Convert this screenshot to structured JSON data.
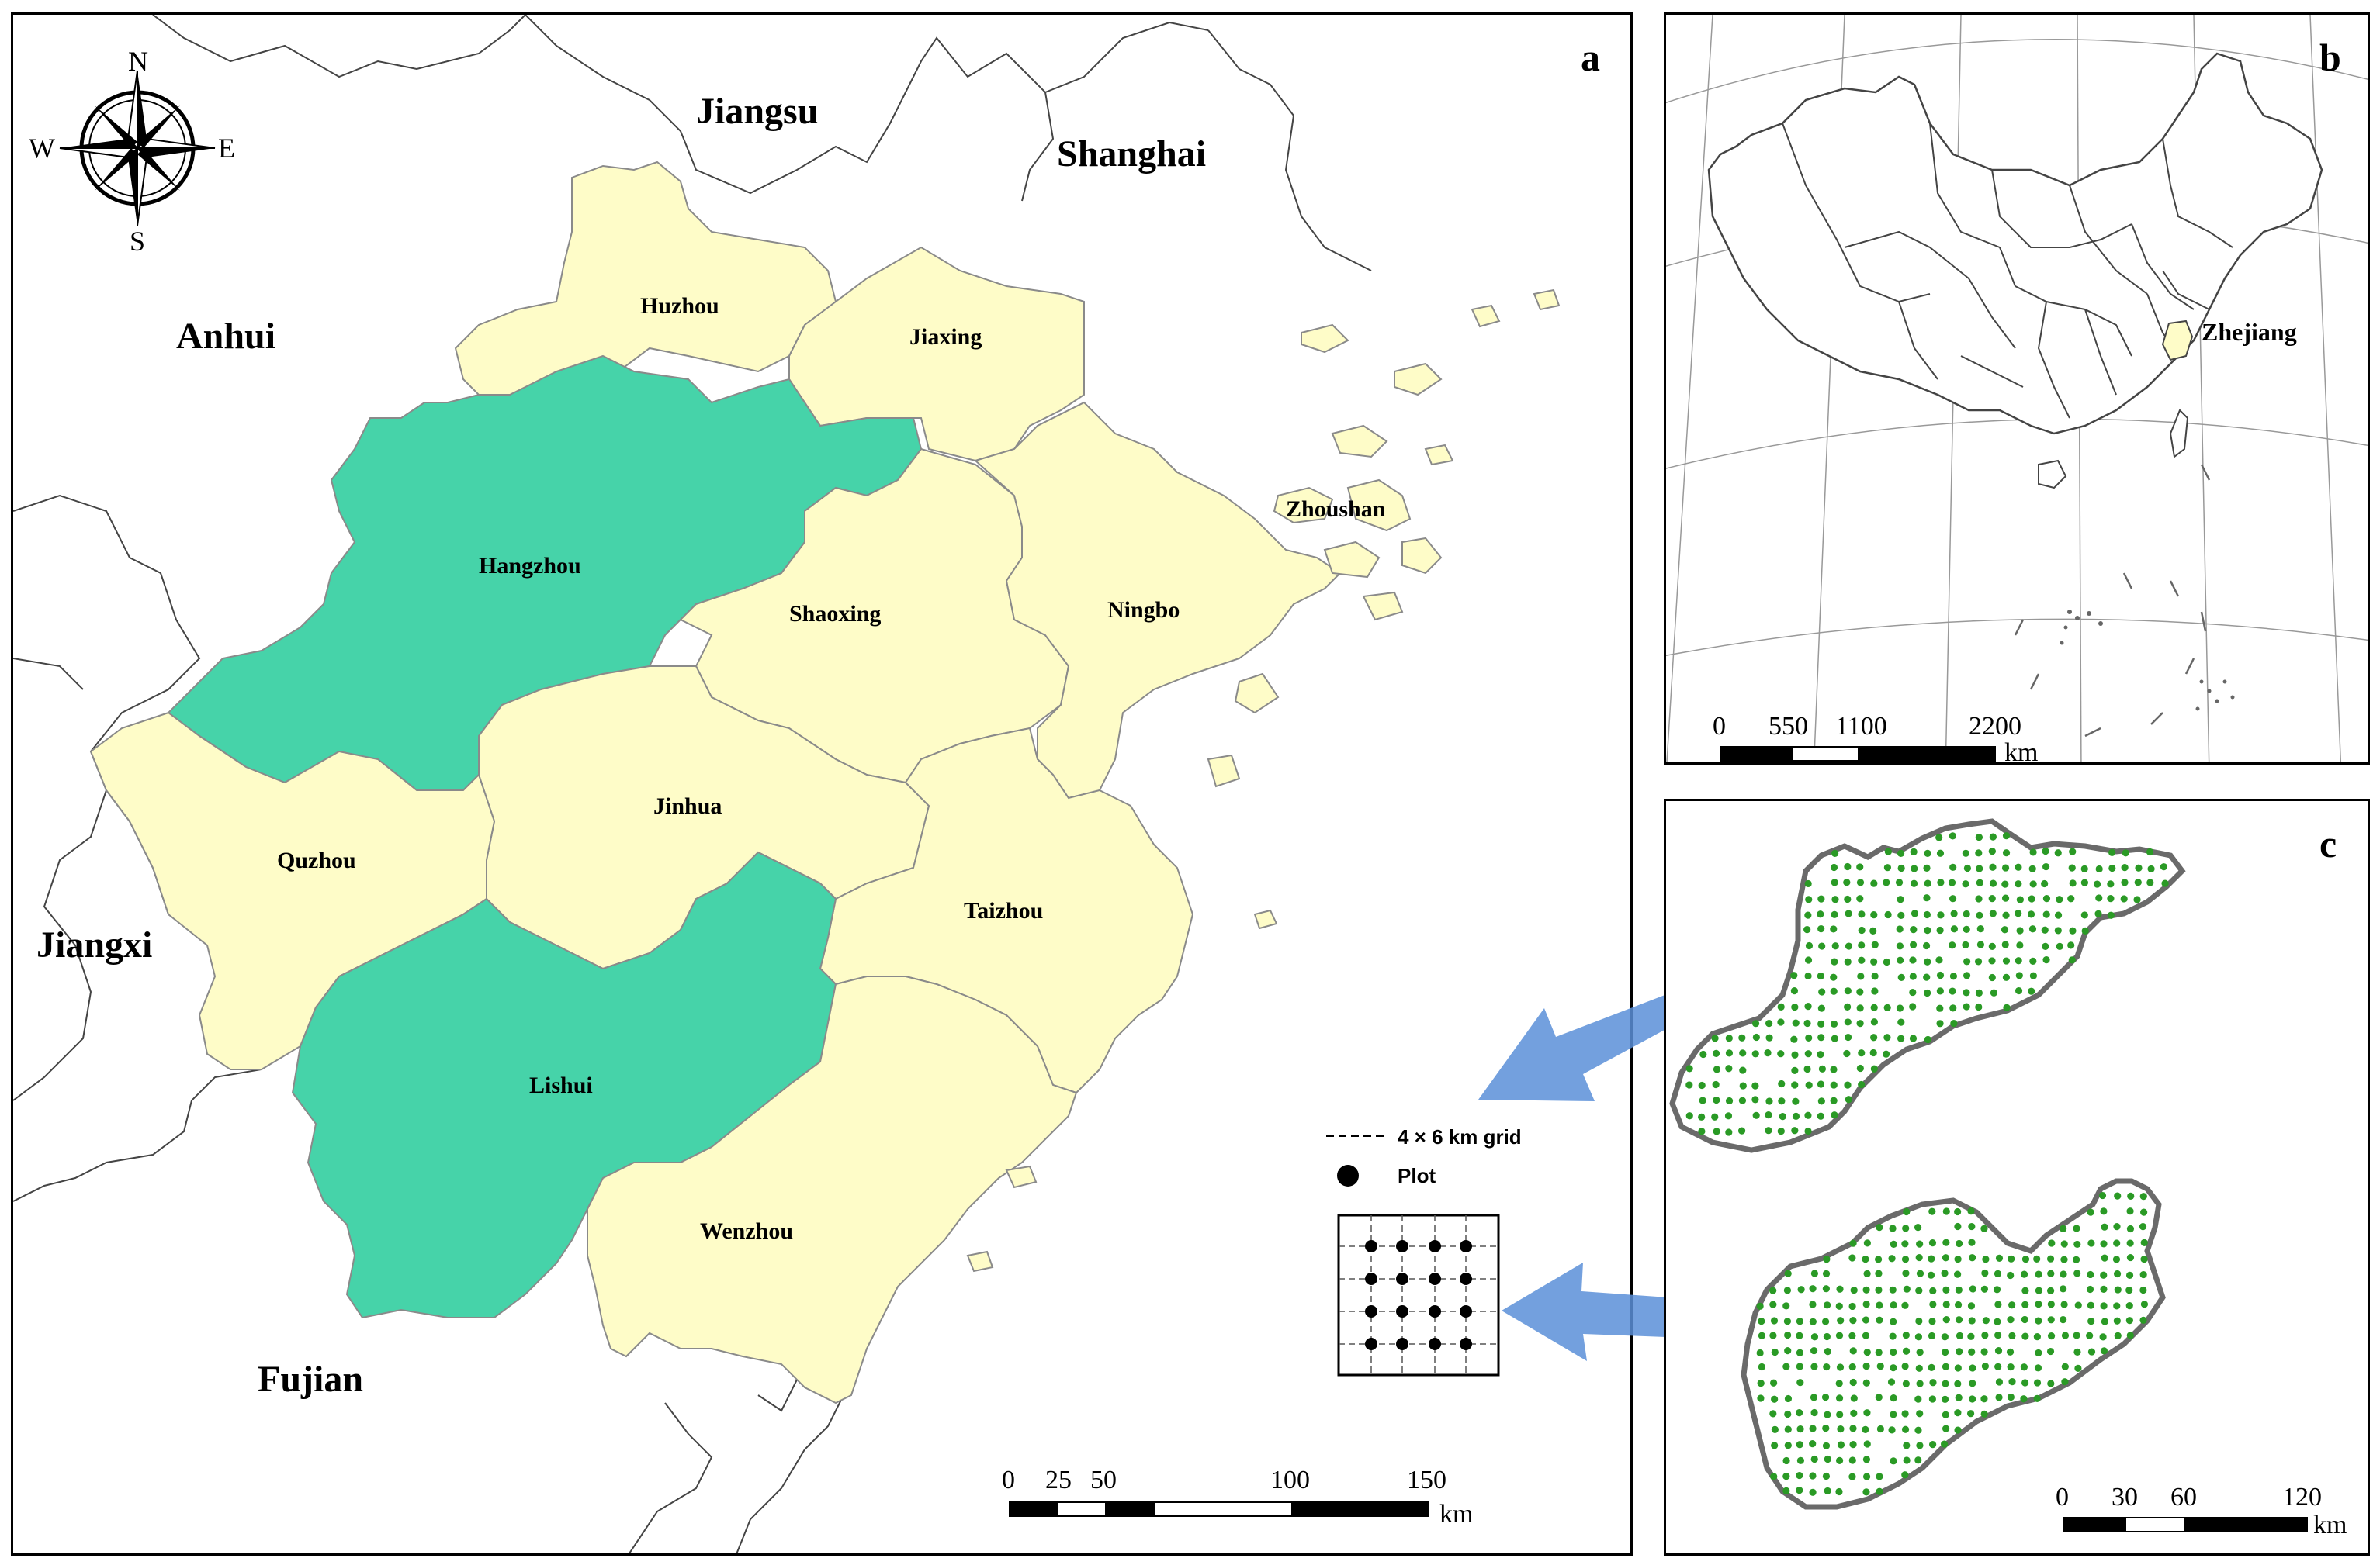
{
  "panels": {
    "a": {
      "letter": "a",
      "provinces": [
        "Jiangsu",
        "Shanghai",
        "Anhui",
        "Jiangxi",
        "Fujian"
      ],
      "cities": [
        "Huzhou",
        "Jiaxing",
        "Zhoushan",
        "Hangzhou",
        "Shaoxing",
        "Ningbo",
        "Jinhua",
        "Quzhou",
        "Taizhou",
        "Lishui",
        "Wenzhou"
      ],
      "highlighted_cities": [
        "Hangzhou",
        "Lishui"
      ],
      "compass": {
        "n": "N",
        "s": "S",
        "e": "E",
        "w": "W"
      },
      "legend": {
        "grid": "4 × 6 km grid",
        "plot": "Plot"
      },
      "scale": {
        "ticks": [
          "0",
          "25",
          "50",
          "100",
          "150"
        ],
        "unit": "km"
      }
    },
    "b": {
      "letter": "b",
      "label": "Zhejiang",
      "scale": {
        "ticks": [
          "0",
          "550",
          "1100",
          "2200"
        ],
        "unit": "km"
      }
    },
    "c": {
      "letter": "c",
      "scale": {
        "ticks": [
          "0",
          "30",
          "60",
          "120"
        ],
        "unit": "km"
      }
    }
  },
  "colors": {
    "zhejiang_fill": "#fefcc8",
    "highlight_fill": "#46d3a9",
    "plot_dot": "#2a9a25",
    "arrow": "#5b8fd8",
    "boundary": "#7a7a7a"
  }
}
